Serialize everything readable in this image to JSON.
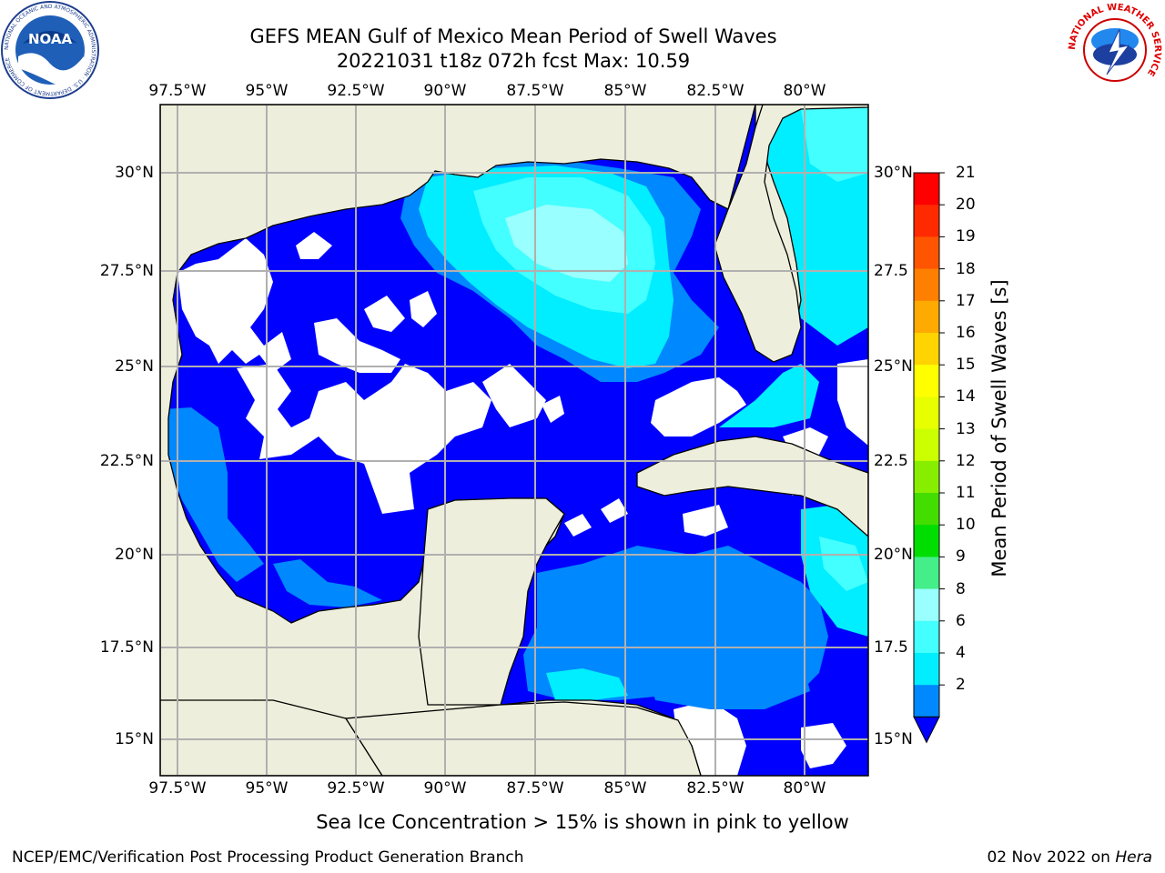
{
  "title": {
    "line1": "GEFS MEAN Gulf of Mexico Mean Period of Swell Waves",
    "line2": "20221031 t18z 072h fcst   Max: 10.59"
  },
  "map": {
    "lon_ticks": [
      "97.5°W",
      "95°W",
      "92.5°W",
      "90°W",
      "87.5°W",
      "85°W",
      "82.5°W",
      "80°W"
    ],
    "lat_ticks_left": [
      "30°N",
      "27.5°N",
      "25°N",
      "22.5°N",
      "20°N",
      "17.5°N",
      "15°N"
    ],
    "lat_ticks_right": [
      "30°N",
      "27.5",
      "25°N",
      "22.5",
      "20°N",
      "17.5",
      "15°N"
    ],
    "land_color": "#eeeedc",
    "grid_color": "#b0b0b0"
  },
  "colorbar": {
    "label": "Mean Period of Swell Waves [s]",
    "ticks": [
      "21",
      "20",
      "19",
      "18",
      "17",
      "16",
      "15",
      "14",
      "13",
      "12",
      "11",
      "10",
      "9",
      "8",
      "6",
      "4",
      "2"
    ],
    "colors": [
      "#ff0000",
      "#ff2a00",
      "#ff5500",
      "#ff7f00",
      "#ffaa00",
      "#ffd400",
      "#ffff00",
      "#e8ff00",
      "#ccff00",
      "#88ee00",
      "#44dd00",
      "#00dd00",
      "#44ee88",
      "#99ffff",
      "#44ffff",
      "#00eeff",
      "#0088ff"
    ],
    "extend_color": "#0000ff"
  },
  "logos": {
    "noaa_text": "NOAA",
    "noaa_ring": "NATIONAL OCEANIC AND ATMOSPHERIC ADMINISTRATION · U.S. DEPARTMENT OF COMMERCE",
    "nws_ring": "NATIONAL WEATHER SERVICE"
  },
  "note": "Sea Ice Concentration > 15% is shown in pink to yellow",
  "footer": {
    "left": "NCEP/EMC/Verification Post Processing Product Generation Branch",
    "right_date": "02 Nov 2022 on ",
    "right_host": "Hera"
  }
}
